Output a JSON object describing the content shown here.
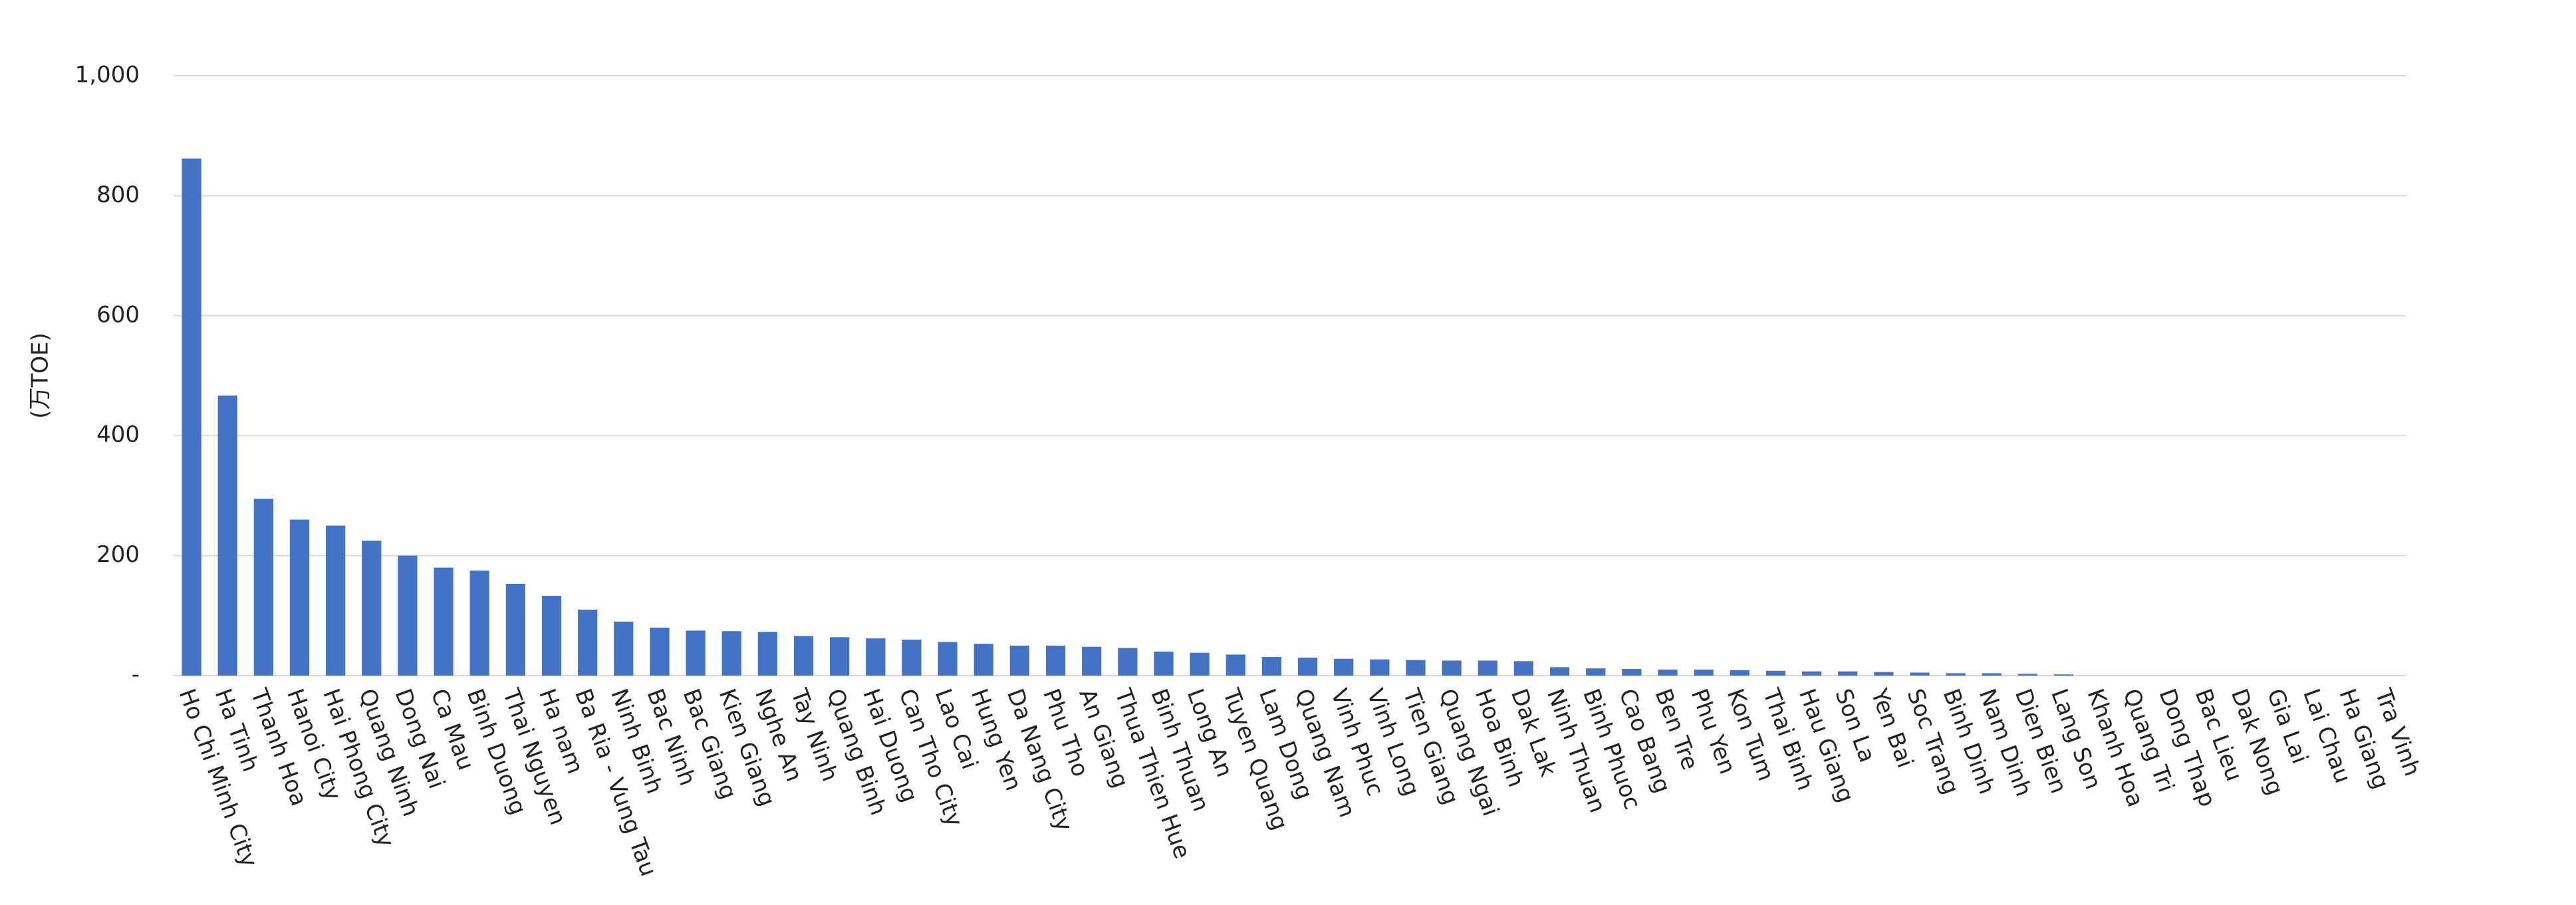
{
  "chart_data": {
    "type": "bar",
    "y_label": "(万TOE)",
    "categories": [
      "Ho Chi Minh City",
      "Ha Tinh",
      "Thanh Hoa",
      "Hanoi City",
      "Hai Phong City",
      "Quang Ninh",
      "Dong Nai",
      "Ca Mau",
      "Binh Duong",
      "Thai Nguyen",
      "Ha nam",
      "Ba Ria - Vung Tau",
      "Ninh Binh",
      "Bac Ninh",
      "Bac Giang",
      "Kien Giang",
      "Nghe An",
      "Tay Ninh",
      "Quang Binh",
      "Hai Duong",
      "Can Tho City",
      "Lao Cai",
      "Hung Yen",
      "Da Nang City",
      "Phu Tho",
      "An Giang",
      "Thua Thien Hue",
      "Binh Thuan",
      "Long An",
      "Tuyen Quang",
      "Lam Dong",
      "Quang Nam",
      "Vinh Phuc",
      "Vinh Long",
      "Tien Giang",
      "Quang Ngai",
      "Hoa Binh",
      "Dak Lak",
      "Ninh Thuan",
      "Binh Phuoc",
      "Cao Bang",
      "Ben Tre",
      "Phu Yen",
      "Kon Tum",
      "Thai Binh",
      "Hau Giang",
      "Son La",
      "Yen Bai",
      "Soc Trang",
      "Binh Dinh",
      "Nam Dinh",
      "Dien Bien",
      "Lang Son",
      "Khanh Hoa",
      "Quang Tri",
      "Dong Thap",
      "Bac Lieu",
      "Dak Nong",
      "Gia Lai",
      "Lai Chau",
      "Ha Giang",
      "Tra Vinh"
    ],
    "values": [
      862,
      467,
      295,
      260,
      250,
      225,
      200,
      180,
      175,
      153,
      133,
      110,
      90,
      80,
      75,
      74,
      73,
      66,
      64,
      62,
      60,
      56,
      53,
      50,
      50,
      48,
      46,
      40,
      38,
      35,
      31,
      30,
      28,
      27,
      26,
      25,
      25,
      24,
      14,
      12,
      11,
      10,
      10,
      9,
      8,
      7,
      7,
      6,
      5,
      4,
      4,
      3,
      2,
      0,
      0,
      0,
      0,
      0,
      0,
      0,
      0,
      0
    ],
    "color": "#4472c4",
    "ylim": [
      0,
      1000
    ],
    "yticks": [
      {
        "value": 0,
        "label": "-"
      },
      200,
      400,
      600,
      800,
      {
        "value": 1000,
        "label": "1,000"
      }
    ],
    "grid": true
  }
}
